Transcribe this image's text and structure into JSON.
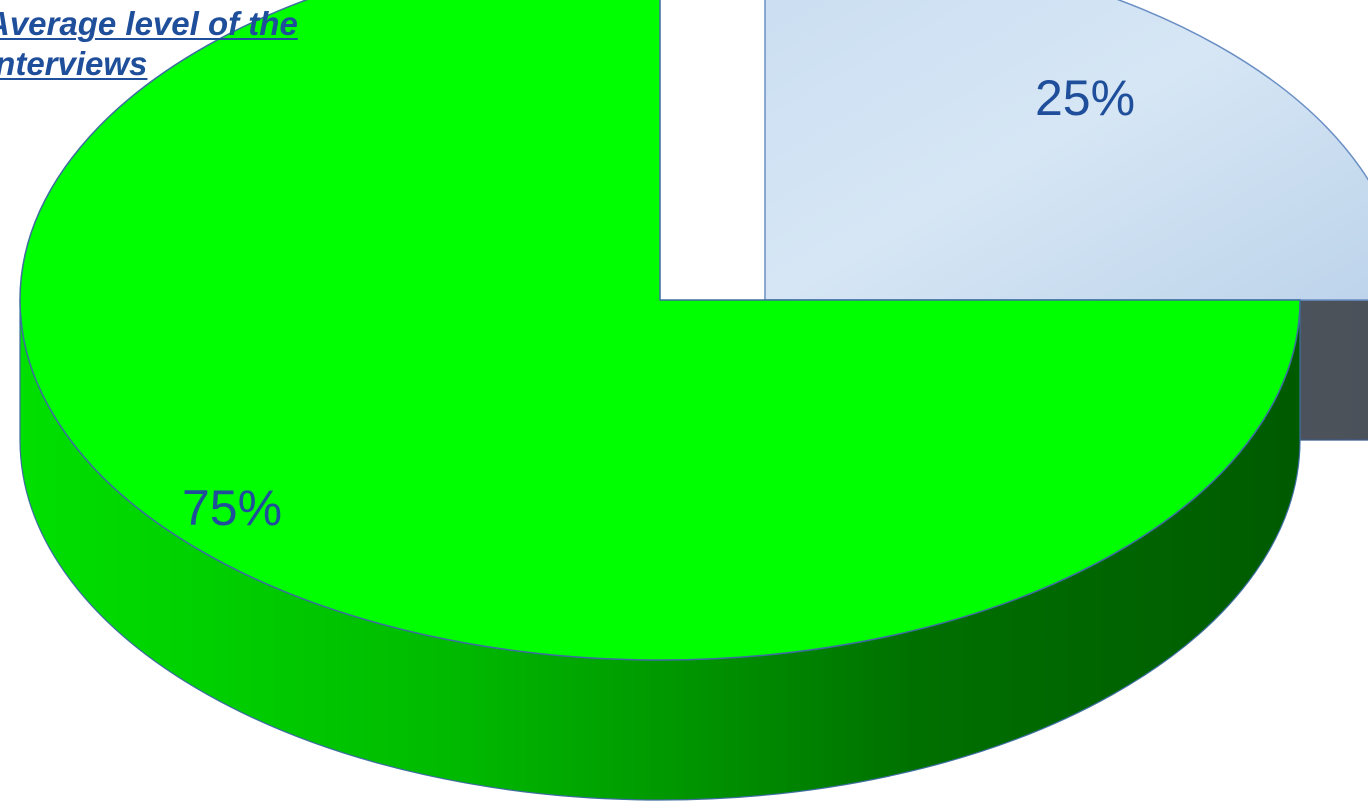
{
  "chart_data": {
    "type": "pie",
    "title_lines": [
      "Average level of the",
      "interviews"
    ],
    "categories": [
      "",
      ""
    ],
    "values": [
      25,
      75
    ],
    "data_labels": [
      "25%",
      "75%"
    ],
    "colors": [
      "#d6e6f5",
      "#00ff00"
    ],
    "side_colors": [
      "#5a606a",
      "#008a00"
    ],
    "label_color": "#1f4e9b",
    "style": "3d-exploded",
    "legend": "none"
  }
}
